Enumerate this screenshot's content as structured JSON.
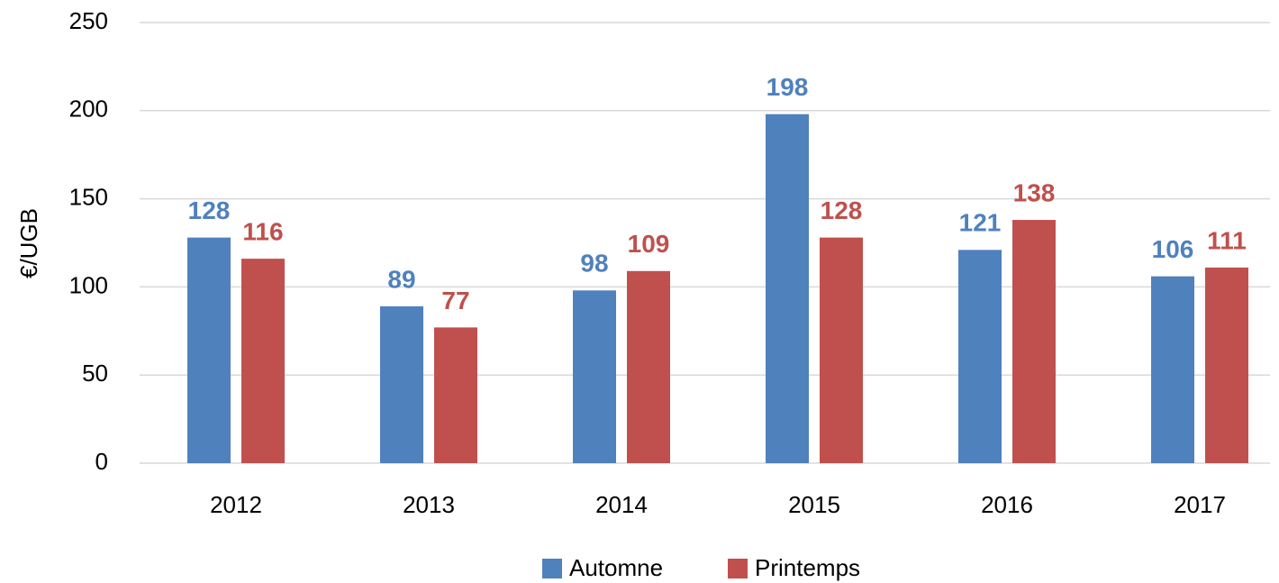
{
  "chart_data": {
    "type": "bar",
    "y_label": "€/UGB",
    "categories": [
      "2012",
      "2013",
      "2014",
      "2015",
      "2016",
      "2017"
    ],
    "series": [
      {
        "name": "Automne",
        "color": "#4f81bd",
        "values": [
          128,
          89,
          98,
          198,
          121,
          106
        ]
      },
      {
        "name": "Printemps",
        "color": "#c0504d",
        "values": [
          116,
          77,
          109,
          128,
          138,
          111
        ]
      }
    ],
    "ylim": [
      0,
      250
    ],
    "yticks": [
      0,
      50,
      100,
      150,
      200,
      250
    ],
    "grid": true,
    "legend": "bottom"
  }
}
